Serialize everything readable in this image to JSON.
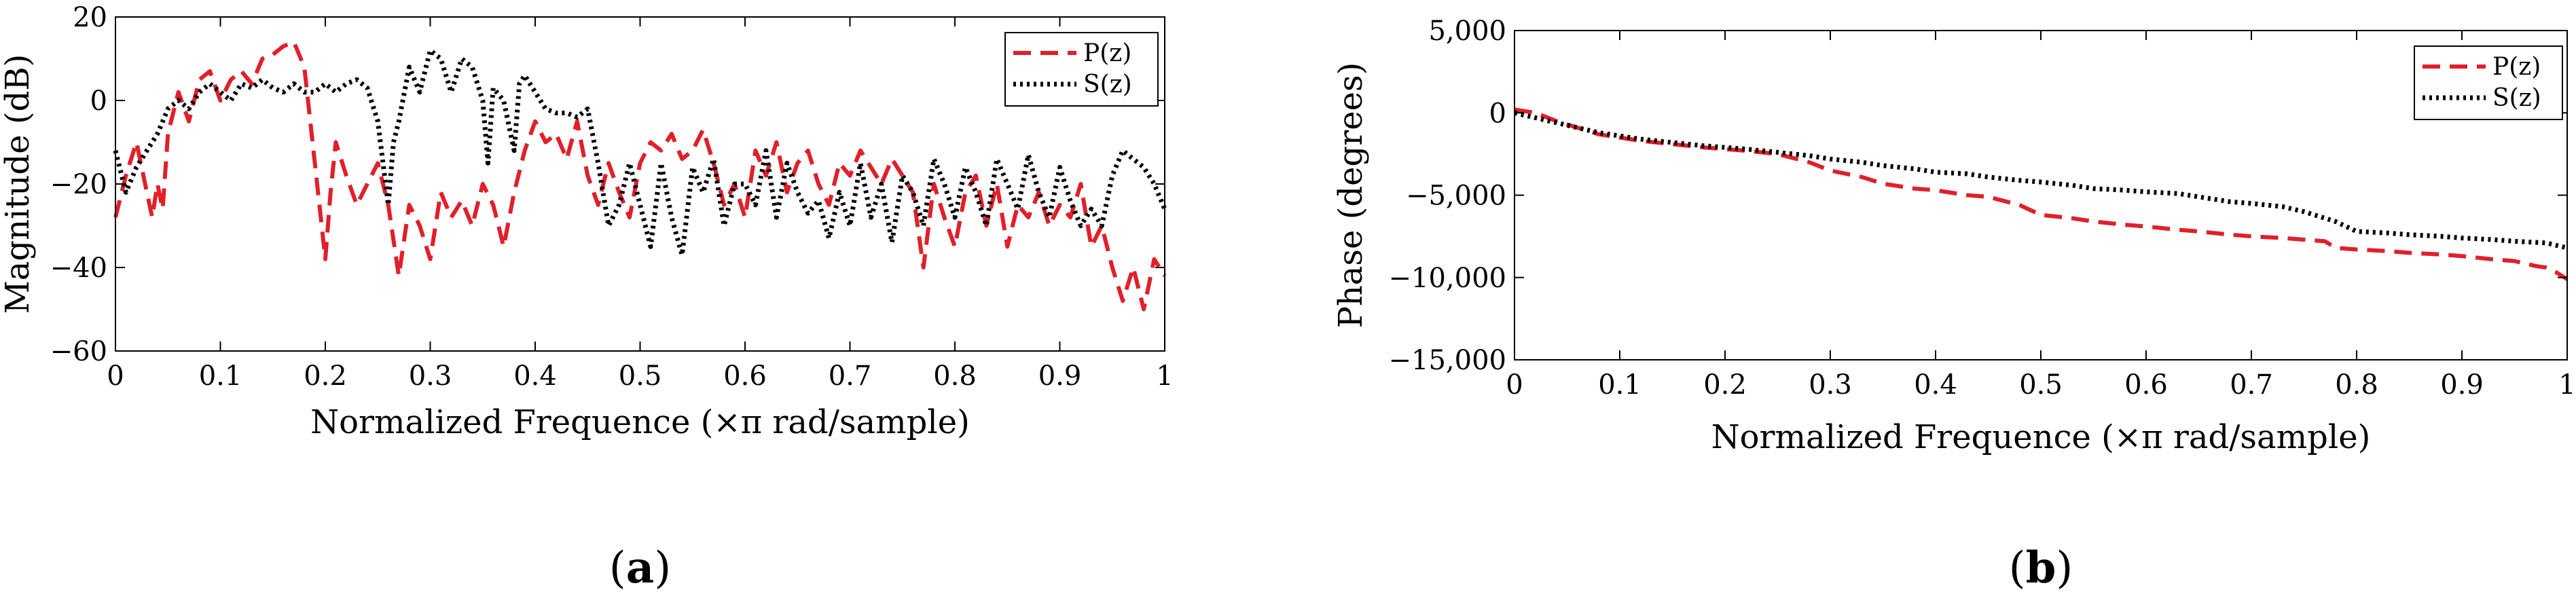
{
  "chart_data": [
    {
      "type": "line",
      "panel": "(a)",
      "xlabel": "Normalized Frequence (×π rad/sample)",
      "ylabel": "Magnitude (dB)",
      "xlim": [
        0,
        1
      ],
      "ylim": [
        -60,
        20
      ],
      "xticks": [
        0,
        0.1,
        0.2,
        0.3,
        0.4,
        0.5,
        0.6,
        0.7,
        0.8,
        0.9,
        1
      ],
      "xtick_labels": [
        "0",
        "0.1",
        "0.2",
        "0.3",
        "0.4",
        "0.5",
        "0.6",
        "0.7",
        "0.8",
        "0.9",
        "1"
      ],
      "yticks": [
        -60,
        -40,
        -20,
        0,
        20
      ],
      "ytick_labels": [
        "−60",
        "−40",
        "−20",
        "0",
        "20"
      ],
      "grid": false,
      "legend_position": "top-right",
      "series": [
        {
          "name": "P(z)",
          "color": "#e0202a",
          "style": "dashed",
          "x": [
            0,
            0.01,
            0.02,
            0.03,
            0.035,
            0.04,
            0.045,
            0.05,
            0.06,
            0.07,
            0.08,
            0.09,
            0.1,
            0.11,
            0.12,
            0.13,
            0.14,
            0.15,
            0.16,
            0.17,
            0.18,
            0.19,
            0.2,
            0.205,
            0.21,
            0.22,
            0.23,
            0.24,
            0.25,
            0.26,
            0.27,
            0.28,
            0.29,
            0.3,
            0.31,
            0.32,
            0.33,
            0.34,
            0.35,
            0.36,
            0.37,
            0.38,
            0.39,
            0.4,
            0.41,
            0.42,
            0.43,
            0.44,
            0.45,
            0.46,
            0.47,
            0.48,
            0.49,
            0.5,
            0.51,
            0.52,
            0.53,
            0.54,
            0.55,
            0.56,
            0.57,
            0.58,
            0.59,
            0.6,
            0.61,
            0.62,
            0.63,
            0.64,
            0.65,
            0.66,
            0.67,
            0.68,
            0.69,
            0.7,
            0.71,
            0.72,
            0.73,
            0.74,
            0.75,
            0.76,
            0.77,
            0.78,
            0.79,
            0.8,
            0.81,
            0.82,
            0.83,
            0.84,
            0.85,
            0.86,
            0.87,
            0.88,
            0.89,
            0.9,
            0.91,
            0.92,
            0.93,
            0.94,
            0.95,
            0.96,
            0.97,
            0.98,
            0.99,
            1
          ],
          "values": [
            -28,
            -18,
            -10,
            -22,
            -28,
            -20,
            -26,
            -8,
            2,
            -5,
            5,
            7,
            0,
            5,
            7,
            4,
            10,
            11,
            13,
            14,
            8,
            -15,
            -38,
            -22,
            -10,
            -18,
            -25,
            -20,
            -15,
            -25,
            -42,
            -25,
            -30,
            -38,
            -22,
            -28,
            -24,
            -30,
            -20,
            -25,
            -35,
            -22,
            -12,
            -5,
            -10,
            -8,
            -14,
            -5,
            -18,
            -25,
            -15,
            -22,
            -28,
            -15,
            -10,
            -12,
            -8,
            -14,
            -12,
            -7,
            -15,
            -25,
            -20,
            -28,
            -12,
            -18,
            -10,
            -22,
            -15,
            -12,
            -20,
            -25,
            -15,
            -18,
            -12,
            -16,
            -20,
            -14,
            -18,
            -22,
            -40,
            -20,
            -28,
            -35,
            -22,
            -18,
            -30,
            -20,
            -35,
            -25,
            -28,
            -22,
            -30,
            -25,
            -28,
            -20,
            -35,
            -30,
            -40,
            -48,
            -40,
            -50,
            -38,
            -42
          ]
        },
        {
          "name": "S(z)",
          "color": "#000000",
          "style": "dotted",
          "x": [
            0,
            0.01,
            0.02,
            0.03,
            0.04,
            0.05,
            0.06,
            0.07,
            0.08,
            0.09,
            0.1,
            0.11,
            0.12,
            0.13,
            0.14,
            0.15,
            0.16,
            0.17,
            0.18,
            0.19,
            0.2,
            0.21,
            0.22,
            0.23,
            0.24,
            0.25,
            0.26,
            0.265,
            0.27,
            0.28,
            0.29,
            0.3,
            0.31,
            0.32,
            0.33,
            0.34,
            0.35,
            0.355,
            0.36,
            0.37,
            0.38,
            0.385,
            0.39,
            0.4,
            0.41,
            0.42,
            0.43,
            0.44,
            0.45,
            0.46,
            0.47,
            0.48,
            0.49,
            0.5,
            0.51,
            0.52,
            0.53,
            0.54,
            0.55,
            0.56,
            0.57,
            0.58,
            0.59,
            0.6,
            0.61,
            0.62,
            0.63,
            0.64,
            0.65,
            0.66,
            0.67,
            0.68,
            0.69,
            0.7,
            0.71,
            0.72,
            0.73,
            0.74,
            0.75,
            0.76,
            0.77,
            0.78,
            0.79,
            0.8,
            0.81,
            0.82,
            0.83,
            0.84,
            0.85,
            0.86,
            0.87,
            0.88,
            0.89,
            0.9,
            0.91,
            0.92,
            0.93,
            0.94,
            0.95,
            0.96,
            0.97,
            0.98,
            0.99,
            1
          ],
          "values": [
            -12,
            -22,
            -16,
            -12,
            -8,
            -2,
            0,
            -2,
            2,
            4,
            2,
            0,
            4,
            3,
            5,
            3,
            2,
            4,
            2,
            2,
            4,
            2,
            4,
            5,
            3,
            -5,
            -25,
            -10,
            -5,
            8,
            2,
            12,
            10,
            2,
            10,
            8,
            0,
            -15,
            3,
            0,
            -12,
            4,
            6,
            2,
            -2,
            -3,
            -3,
            -4,
            -2,
            -15,
            -30,
            -25,
            -15,
            -25,
            -35,
            -15,
            -28,
            -37,
            -16,
            -22,
            -14,
            -30,
            -20,
            -20,
            -25,
            -12,
            -28,
            -15,
            -22,
            -27,
            -24,
            -33,
            -22,
            -30,
            -15,
            -28,
            -20,
            -34,
            -18,
            -22,
            -30,
            -14,
            -20,
            -28,
            -16,
            -22,
            -30,
            -14,
            -20,
            -26,
            -13,
            -22,
            -28,
            -16,
            -24,
            -30,
            -26,
            -30,
            -18,
            -12,
            -14,
            -16,
            -20,
            -26
          ]
        }
      ]
    },
    {
      "type": "line",
      "panel": "(b)",
      "xlabel": "Normalized Frequence (×π rad/sample)",
      "ylabel": "Phase (degrees)",
      "xlim": [
        0,
        1
      ],
      "ylim": [
        -15000,
        5000
      ],
      "xticks": [
        0,
        0.1,
        0.2,
        0.3,
        0.4,
        0.5,
        0.6,
        0.7,
        0.8,
        0.9,
        1
      ],
      "xtick_labels": [
        "0",
        "0.1",
        "0.2",
        "0.3",
        "0.4",
        "0.5",
        "0.6",
        "0.7",
        "0.8",
        "0.9",
        "1"
      ],
      "yticks": [
        -15000,
        -10000,
        -5000,
        0,
        5000
      ],
      "ytick_labels": [
        "−15,000",
        "−10,000",
        "−5,000",
        "0",
        "5,000"
      ],
      "grid": false,
      "legend_position": "top-right",
      "series": [
        {
          "name": "P(z)",
          "color": "#e0202a",
          "style": "dashed",
          "x": [
            0,
            0.02,
            0.04,
            0.06,
            0.08,
            0.1,
            0.12,
            0.15,
            0.18,
            0.2,
            0.22,
            0.25,
            0.28,
            0.3,
            0.33,
            0.35,
            0.38,
            0.4,
            0.43,
            0.45,
            0.48,
            0.5,
            0.53,
            0.55,
            0.58,
            0.6,
            0.63,
            0.65,
            0.68,
            0.7,
            0.73,
            0.75,
            0.77,
            0.78,
            0.8,
            0.83,
            0.85,
            0.88,
            0.9,
            0.93,
            0.95,
            0.97,
            0.98,
            0.99,
            1
          ],
          "values": [
            200,
            0,
            -500,
            -900,
            -1300,
            -1500,
            -1700,
            -1900,
            -2100,
            -2200,
            -2300,
            -2500,
            -3000,
            -3500,
            -3900,
            -4300,
            -4600,
            -4700,
            -5000,
            -5100,
            -5600,
            -6200,
            -6400,
            -6600,
            -6800,
            -6900,
            -7100,
            -7200,
            -7400,
            -7500,
            -7600,
            -7700,
            -7800,
            -8200,
            -8300,
            -8400,
            -8500,
            -8600,
            -8700,
            -8900,
            -9000,
            -9300,
            -9400,
            -9700,
            -10100
          ]
        },
        {
          "name": "S(z)",
          "color": "#000000",
          "style": "dotted",
          "x": [
            0,
            0.02,
            0.04,
            0.06,
            0.08,
            0.1,
            0.12,
            0.15,
            0.18,
            0.2,
            0.22,
            0.25,
            0.28,
            0.3,
            0.33,
            0.35,
            0.38,
            0.4,
            0.43,
            0.45,
            0.48,
            0.5,
            0.53,
            0.55,
            0.58,
            0.6,
            0.63,
            0.65,
            0.68,
            0.7,
            0.73,
            0.75,
            0.78,
            0.8,
            0.83,
            0.85,
            0.88,
            0.9,
            0.93,
            0.95,
            0.98,
            1
          ],
          "values": [
            0,
            -300,
            -600,
            -900,
            -1200,
            -1400,
            -1600,
            -1800,
            -2000,
            -2100,
            -2200,
            -2400,
            -2600,
            -2800,
            -3000,
            -3200,
            -3400,
            -3600,
            -3700,
            -3900,
            -4100,
            -4200,
            -4400,
            -4600,
            -4700,
            -4800,
            -4900,
            -5100,
            -5400,
            -5500,
            -5700,
            -6000,
            -6600,
            -7200,
            -7300,
            -7400,
            -7500,
            -7600,
            -7700,
            -7800,
            -7900,
            -8200
          ]
        }
      ]
    }
  ]
}
